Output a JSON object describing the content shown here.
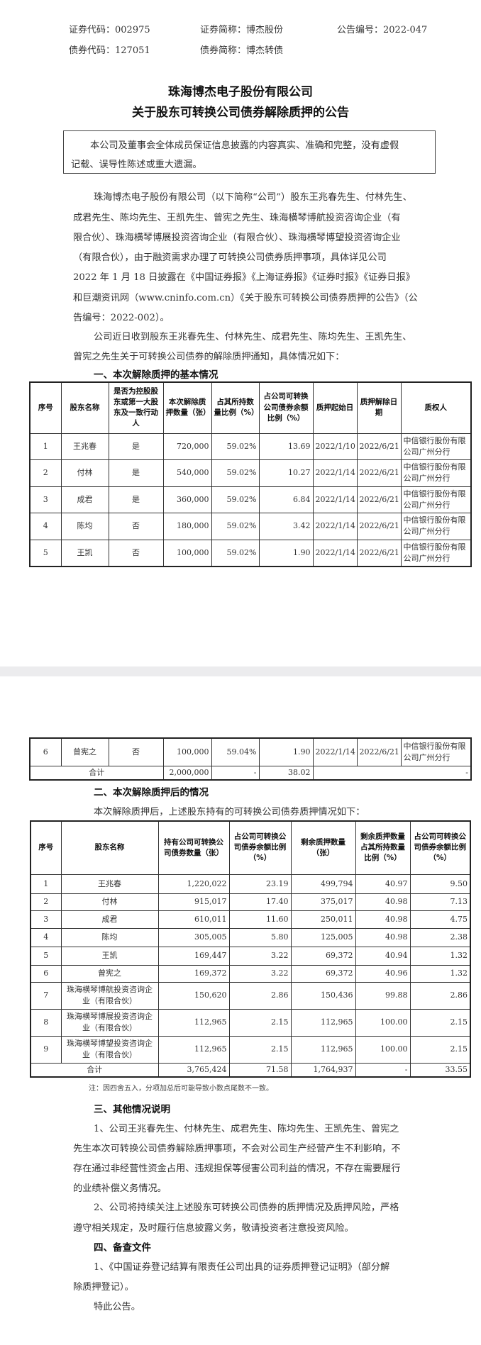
{
  "header": {
    "stock_code": "证券代码：002975",
    "stock_name": "证券简称：博杰股份",
    "notice_no": "公告编号：2022-047",
    "bond_code": "债券代码：127051",
    "bond_name": "债券简称：博杰转债"
  },
  "title": {
    "line1": "珠海博杰电子股份有限公司",
    "line2": "关于股东可转换公司债券解除质押的公告"
  },
  "disclaimer": {
    "lines": [
      "本公司及董事会全体成员保证信息披露的内容真实、准确和完整，没有虚假",
      "记载、误导性陈述或重大遗漏。"
    ]
  },
  "intro": {
    "p1": [
      "珠海博杰电子股份有限公司（以下简称“公司”）股东王兆春先生、付林先生、",
      "成君先生、陈均先生、王凯先生、曾宪之先生、珠海横琴博航投资咨询企业（有",
      "限合伙）、珠海横琴博展投资咨询企业（有限合伙）、珠海横琴博望投资咨询企业",
      "（有限合伙），由于融资需求办理了可转换公司债券质押事项，具体详见公司",
      "2022 年 1 月 18 日披露在《中国证券报》《上海证券报》《证券时报》《证券日报》",
      "和巨潮资讯网（www.cninfo.com.cn）《关于股东可转换公司债券质押的公告》（公",
      "告编号：2022-002）。"
    ],
    "p2": [
      "公司近日收到股东王兆春先生、付林先生、成君先生、陈均先生、王凯先生、",
      "曾宪之先生关于可转换公司债券的解除质押通知，具体情况如下："
    ]
  },
  "section1": {
    "heading": "一、本次解除质押的基本情况",
    "columns": [
      "序号",
      "股东名称",
      "是否为控股股东或第一大股东及一致行动人",
      "本次解除质押数量（张）",
      "占其所持数量比例（%）",
      "占公司可转换公司债券余额比例（%）",
      "质押起始日",
      "质押解除日期",
      "质权人"
    ],
    "rows": [
      [
        "1",
        "王兆春",
        "是",
        "720,000",
        "59.02%",
        "13.69",
        "2022/1/10",
        "2022/6/21",
        "中信银行股份有限公司广州分行"
      ],
      [
        "2",
        "付林",
        "是",
        "540,000",
        "59.02%",
        "10.27",
        "2022/1/14",
        "2022/6/21",
        "中信银行股份有限公司广州分行"
      ],
      [
        "3",
        "成君",
        "是",
        "360,000",
        "59.02%",
        "6.84",
        "2022/1/14",
        "2022/6/21",
        "中信银行股份有限公司广州分行"
      ],
      [
        "4",
        "陈均",
        "否",
        "180,000",
        "59.02%",
        "3.42",
        "2022/1/14",
        "2022/6/21",
        "中信银行股份有限公司广州分行"
      ],
      [
        "5",
        "王凯",
        "否",
        "100,000",
        "59.02%",
        "1.90",
        "2022/1/14",
        "2022/6/21",
        "中信银行股份有限公司广州分行"
      ]
    ],
    "rows_page2": [
      [
        "6",
        "曾宪之",
        "否",
        "100,000",
        "59.04%",
        "1.90",
        "2022/1/14",
        "2022/6/21",
        "中信银行股份有限公司广州分行"
      ]
    ],
    "total": {
      "label": "合计",
      "quantity": "2,000,000",
      "ratio_held": "-",
      "ratio_balance": "38.02",
      "rest": "-"
    }
  },
  "section2": {
    "heading": "二、本次解除质押后的情况",
    "intro": "本次解除质押后，上述股东持有的可转换公司债券质押情况如下：",
    "columns": [
      "序号",
      "股东名称",
      "持有公司可转换公司债券数量（张）",
      "占公司可转换公司债券余额比例（%）",
      "剩余质押数量（张）",
      "剩余质押数量占其所持数量比例（%）",
      "占公司可转换公司债券余额比例（%）"
    ],
    "rows": [
      [
        "1",
        "王兆春",
        "1,220,022",
        "23.19",
        "499,794",
        "40.97",
        "9.50"
      ],
      [
        "2",
        "付林",
        "915,017",
        "17.40",
        "375,017",
        "40.98",
        "7.13"
      ],
      [
        "3",
        "成君",
        "610,011",
        "11.60",
        "250,011",
        "40.98",
        "4.75"
      ],
      [
        "4",
        "陈均",
        "305,005",
        "5.80",
        "125,005",
        "40.98",
        "2.38"
      ],
      [
        "5",
        "王凯",
        "169,447",
        "3.22",
        "69,372",
        "40.94",
        "1.32"
      ],
      [
        "6",
        "曾宪之",
        "169,372",
        "3.22",
        "69,372",
        "40.96",
        "1.32"
      ],
      [
        "7",
        "珠海横琴博航投资咨询企业（有限合伙）",
        "150,620",
        "2.86",
        "150,436",
        "99.88",
        "2.86"
      ],
      [
        "8",
        "珠海横琴博展投资咨询企业（有限合伙）",
        "112,965",
        "2.15",
        "112,965",
        "100.00",
        "2.15"
      ],
      [
        "9",
        "珠海横琴博望投资咨询企业（有限合伙）",
        "112,965",
        "2.15",
        "112,965",
        "100.00",
        "2.15"
      ]
    ],
    "total": [
      "合计",
      "3,765,424",
      "71.58",
      "1,764,937",
      "-",
      "33.55"
    ],
    "note": "注：因四舍五入，分项加总后可能导致小数点尾数不一致。"
  },
  "section3": {
    "heading": "三、其他情况说明",
    "p1": [
      "1、公司王兆春先生、付林先生、成君先生、陈均先生、王凯先生、曾宪之",
      "先生本次可转换公司债券解除质押事项，不会对公司生产经营产生不利影响，不",
      "存在通过非经营性资金占用、违规担保等侵害公司利益的情况，不存在需要履行",
      "的业绩补偿义务情况。"
    ],
    "p2": [
      "2、公司将持续关注上述股东可转换公司债券的质押情况及质押风险，严格",
      "遵守相关规定，及时履行信息披露义务，敬请投资者注意投资风险。"
    ]
  },
  "section4": {
    "heading": "四、备查文件",
    "p1": [
      "1、《中国证券登记结算有限责任公司出具的证券质押登记证明》（部分解",
      "除质押登记）。"
    ],
    "closing": "特此公告。"
  }
}
